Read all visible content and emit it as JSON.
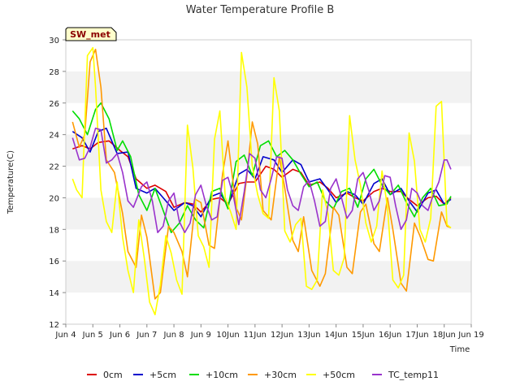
{
  "chart_data": {
    "type": "line",
    "title": "Water Temperature Profile B",
    "xlabel": "Time",
    "ylabel": "Temperature(C)",
    "xlim": [
      4,
      19
    ],
    "ylim": [
      12,
      30
    ],
    "x_ticks": [
      {
        "v": 4,
        "label": "Jun 4"
      },
      {
        "v": 5,
        "label": "Jun 5"
      },
      {
        "v": 6,
        "label": "Jun 6"
      },
      {
        "v": 7,
        "label": "Jun 7"
      },
      {
        "v": 8,
        "label": "Jun 8"
      },
      {
        "v": 9,
        "label": "Jun 9"
      },
      {
        "v": 10,
        "label": "10Jun"
      },
      {
        "v": 11,
        "label": "11Jun"
      },
      {
        "v": 12,
        "label": "12Jun"
      },
      {
        "v": 13,
        "label": "13Jun"
      },
      {
        "v": 14,
        "label": "14Jun"
      },
      {
        "v": 15,
        "label": "15Jun"
      },
      {
        "v": 16,
        "label": "16Jun"
      },
      {
        "v": 17,
        "label": "17Jun"
      },
      {
        "v": 18,
        "label": "18Jun"
      },
      {
        "v": 19,
        "label": "Jun 19"
      }
    ],
    "y_ticks": [
      12,
      14,
      16,
      18,
      20,
      22,
      24,
      26,
      28,
      30
    ],
    "grid": "horizontal bands",
    "legend_position": "bottom",
    "annotation": "SW_met",
    "series": [
      {
        "name": "0cm",
        "color": "#dd0000",
        "x": [
          4.25,
          4.6,
          4.9,
          5.2,
          5.6,
          6.0,
          6.3,
          6.6,
          7.0,
          7.3,
          7.7,
          8.0,
          8.4,
          8.7,
          9.0,
          9.4,
          9.7,
          10.0,
          10.4,
          10.7,
          11.0,
          11.4,
          11.7,
          12.0,
          12.4,
          12.7,
          13.0,
          13.4,
          13.7,
          14.0,
          14.4,
          14.7,
          15.0,
          15.4,
          15.7,
          16.0,
          16.4,
          16.7,
          17.0,
          17.4,
          17.7,
          18.0,
          18.25
        ],
        "y": [
          23.1,
          23.3,
          23.1,
          23.5,
          23.6,
          23.0,
          22.6,
          21.2,
          20.6,
          20.8,
          20.4,
          19.4,
          19.7,
          19.6,
          19.1,
          19.9,
          20.0,
          19.6,
          20.9,
          21.0,
          21.0,
          22.0,
          21.8,
          21.3,
          21.8,
          21.6,
          20.8,
          21.0,
          20.6,
          20.0,
          20.3,
          20.0,
          19.8,
          20.4,
          20.6,
          20.4,
          20.4,
          19.9,
          19.5,
          20.0,
          20.1,
          19.6,
          20.0
        ]
      },
      {
        "name": "+5cm",
        "color": "#0000cc",
        "x": [
          4.25,
          4.6,
          4.9,
          5.2,
          5.5,
          5.9,
          6.3,
          6.6,
          7.0,
          7.3,
          7.6,
          8.0,
          8.4,
          8.7,
          9.0,
          9.4,
          9.7,
          10.0,
          10.4,
          10.7,
          11.0,
          11.3,
          11.7,
          12.0,
          12.4,
          12.7,
          13.0,
          13.4,
          13.7,
          14.0,
          14.4,
          14.7,
          15.0,
          15.4,
          15.7,
          16.0,
          16.4,
          16.7,
          17.0,
          17.4,
          17.7,
          18.0,
          18.25
        ],
        "y": [
          24.2,
          23.8,
          22.9,
          24.2,
          24.4,
          22.8,
          22.9,
          20.6,
          20.3,
          20.6,
          20.0,
          19.2,
          19.7,
          19.5,
          18.8,
          20.1,
          20.3,
          19.5,
          21.5,
          21.8,
          21.2,
          22.6,
          22.4,
          21.6,
          22.4,
          22.1,
          21.0,
          21.2,
          20.5,
          19.7,
          20.4,
          20.2,
          19.6,
          20.9,
          21.2,
          20.2,
          20.6,
          19.8,
          19.1,
          20.3,
          20.5,
          19.6,
          19.9
        ]
      },
      {
        "name": "+10cm",
        "color": "#00dd00",
        "x": [
          4.25,
          4.5,
          4.8,
          5.1,
          5.3,
          5.6,
          5.9,
          6.1,
          6.4,
          6.7,
          7.0,
          7.3,
          7.6,
          7.9,
          8.2,
          8.5,
          8.8,
          9.1,
          9.4,
          9.7,
          10.0,
          10.3,
          10.6,
          10.9,
          11.2,
          11.5,
          11.8,
          12.1,
          12.4,
          12.7,
          13.0,
          13.3,
          13.6,
          13.9,
          14.2,
          14.5,
          14.8,
          15.1,
          15.4,
          15.7,
          16.0,
          16.3,
          16.6,
          16.9,
          17.2,
          17.5,
          17.8,
          18.1,
          18.25
        ],
        "y": [
          25.5,
          25.0,
          24.0,
          25.6,
          26.0,
          25.0,
          23.0,
          23.6,
          22.6,
          20.2,
          19.2,
          20.6,
          19.2,
          17.8,
          18.4,
          19.5,
          18.6,
          18.1,
          20.4,
          20.6,
          19.3,
          22.3,
          22.7,
          21.4,
          23.3,
          23.6,
          22.6,
          23.0,
          22.4,
          21.5,
          20.7,
          21.0,
          19.8,
          19.3,
          20.4,
          20.6,
          19.4,
          21.2,
          21.8,
          20.8,
          20.2,
          20.8,
          19.7,
          18.8,
          20.0,
          20.6,
          19.5,
          19.6,
          20.1
        ]
      },
      {
        "name": "+30cm",
        "color": "#ff9900",
        "x": [
          4.25,
          4.5,
          4.7,
          4.9,
          5.1,
          5.3,
          5.5,
          5.8,
          6.1,
          6.3,
          6.6,
          6.8,
          7.0,
          7.3,
          7.5,
          7.8,
          8.0,
          8.3,
          8.5,
          8.8,
          9.0,
          9.3,
          9.5,
          9.8,
          10.0,
          10.3,
          10.5,
          10.7,
          10.9,
          11.1,
          11.3,
          11.6,
          11.9,
          12.1,
          12.4,
          12.6,
          12.8,
          13.1,
          13.4,
          13.6,
          13.9,
          14.1,
          14.4,
          14.6,
          14.9,
          15.1,
          15.4,
          15.6,
          15.9,
          16.1,
          16.4,
          16.6,
          16.9,
          17.1,
          17.4,
          17.6,
          17.9,
          18.1,
          18.25
        ],
        "y": [
          24.8,
          23.2,
          24.0,
          28.6,
          29.4,
          27.0,
          22.4,
          21.6,
          19.0,
          16.6,
          15.6,
          18.9,
          17.5,
          13.6,
          14.0,
          18.2,
          17.8,
          16.6,
          15.0,
          19.9,
          19.7,
          17.0,
          16.8,
          21.5,
          23.6,
          19.4,
          18.6,
          21.4,
          24.8,
          23.4,
          19.2,
          18.6,
          22.6,
          20.6,
          17.3,
          16.6,
          18.8,
          15.4,
          14.4,
          15.2,
          19.4,
          18.9,
          15.6,
          15.2,
          19.1,
          19.6,
          17.1,
          16.6,
          20.0,
          18.0,
          14.6,
          14.1,
          18.4,
          17.6,
          16.1,
          16.0,
          19.1,
          18.2,
          18.1
        ]
      },
      {
        "name": "+50cm",
        "color": "#ffff00",
        "x": [
          4.25,
          4.4,
          4.6,
          4.8,
          5.0,
          5.1,
          5.3,
          5.5,
          5.7,
          5.9,
          6.1,
          6.3,
          6.5,
          6.7,
          6.9,
          7.1,
          7.3,
          7.5,
          7.7,
          7.9,
          8.1,
          8.3,
          8.5,
          8.7,
          8.9,
          9.1,
          9.3,
          9.5,
          9.7,
          9.9,
          10.1,
          10.3,
          10.5,
          10.7,
          10.9,
          11.1,
          11.3,
          11.5,
          11.7,
          11.9,
          12.1,
          12.3,
          12.5,
          12.7,
          12.9,
          13.1,
          13.3,
          13.5,
          13.7,
          13.9,
          14.1,
          14.3,
          14.5,
          14.7,
          14.9,
          15.1,
          15.3,
          15.5,
          15.7,
          15.9,
          16.1,
          16.3,
          16.5,
          16.7,
          16.9,
          17.1,
          17.3,
          17.5,
          17.7,
          17.9,
          18.1,
          18.25
        ],
        "y": [
          21.2,
          20.5,
          20.0,
          29.0,
          29.5,
          27.0,
          20.5,
          18.5,
          17.8,
          21.0,
          17.5,
          15.4,
          14.0,
          18.6,
          16.2,
          13.4,
          12.6,
          14.5,
          17.6,
          16.5,
          14.8,
          13.9,
          24.6,
          21.9,
          17.6,
          16.9,
          15.6,
          23.7,
          25.5,
          20.0,
          19.1,
          18.0,
          29.2,
          27.0,
          22.0,
          20.2,
          19.0,
          18.7,
          27.6,
          25.5,
          17.9,
          17.2,
          18.3,
          18.7,
          14.4,
          14.2,
          14.8,
          20.5,
          19.0,
          15.4,
          15.1,
          16.2,
          25.2,
          22.4,
          20.8,
          18.4,
          17.2,
          18.2,
          21.7,
          19.4,
          14.8,
          14.3,
          15.1,
          24.1,
          22.3,
          18.0,
          17.2,
          18.7,
          25.8,
          26.1,
          18.3,
          18.1
        ]
      },
      {
        "name": "TC_temp11",
        "color": "#9933cc",
        "x": [
          4.25,
          4.5,
          4.7,
          4.9,
          5.1,
          5.3,
          5.5,
          5.7,
          5.9,
          6.1,
          6.3,
          6.5,
          6.8,
          7.0,
          7.2,
          7.4,
          7.6,
          7.8,
          8.0,
          8.2,
          8.4,
          8.6,
          8.8,
          9.0,
          9.2,
          9.4,
          9.6,
          9.8,
          10.0,
          10.2,
          10.4,
          10.6,
          10.8,
          11.0,
          11.2,
          11.4,
          11.6,
          11.8,
          12.0,
          12.2,
          12.4,
          12.6,
          12.8,
          13.0,
          13.2,
          13.4,
          13.6,
          13.8,
          14.0,
          14.2,
          14.4,
          14.6,
          14.8,
          15.0,
          15.2,
          15.4,
          15.6,
          15.8,
          16.0,
          16.2,
          16.4,
          16.6,
          16.8,
          17.0,
          17.2,
          17.4,
          17.6,
          17.8,
          18.0,
          18.1,
          18.25
        ],
        "y": [
          23.8,
          22.4,
          22.5,
          23.2,
          24.4,
          24.3,
          22.2,
          22.4,
          22.8,
          21.6,
          19.8,
          19.4,
          20.7,
          21.0,
          19.8,
          17.8,
          18.2,
          19.8,
          20.3,
          18.5,
          17.8,
          18.4,
          20.2,
          20.8,
          19.5,
          18.6,
          18.8,
          21.1,
          21.3,
          20.1,
          18.3,
          20.4,
          22.8,
          22.5,
          20.5,
          20.0,
          21.2,
          22.6,
          22.5,
          20.5,
          19.5,
          19.2,
          20.7,
          21.1,
          19.8,
          18.2,
          18.5,
          20.6,
          21.2,
          20.0,
          18.7,
          19.2,
          21.2,
          21.6,
          20.5,
          19.2,
          19.8,
          21.4,
          21.3,
          19.5,
          18.0,
          18.6,
          20.6,
          20.3,
          19.5,
          19.2,
          20.2,
          21.0,
          22.4,
          22.4,
          21.8
        ]
      }
    ]
  }
}
